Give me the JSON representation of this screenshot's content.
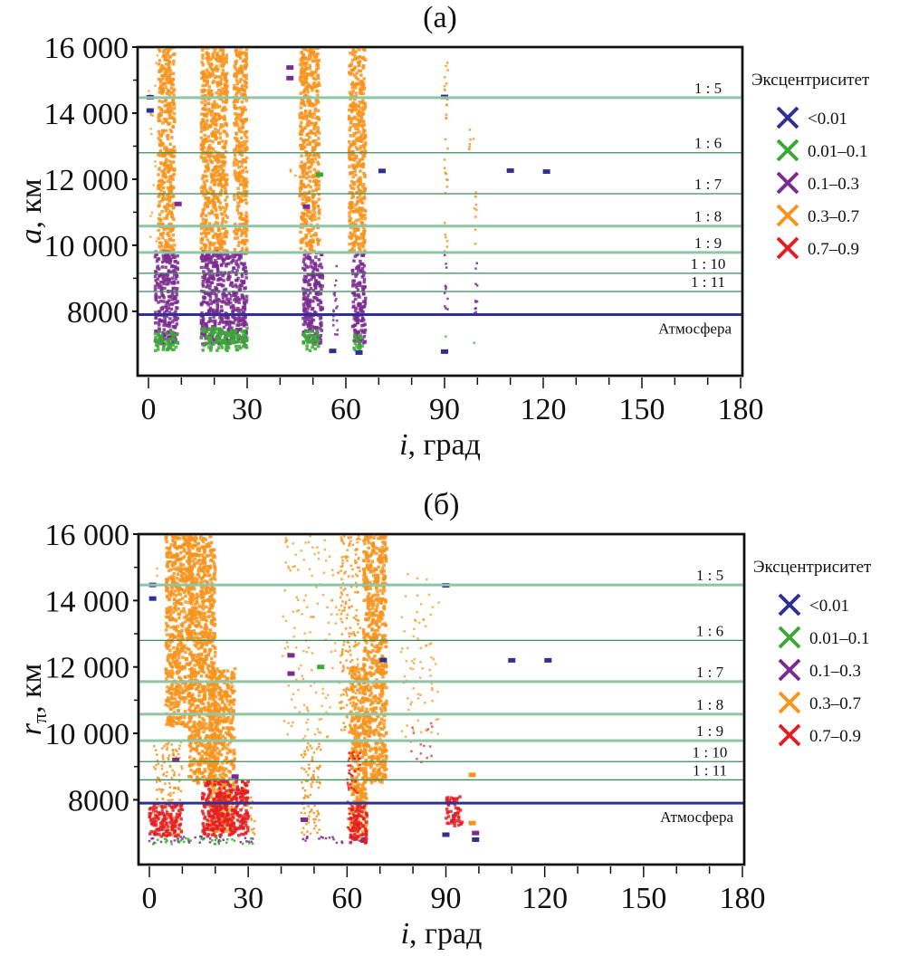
{
  "colors": {
    "<0.01": "#2e3192",
    "0.01–0.1": "#3aaa35",
    "0.1–0.3": "#7b2c8f",
    "0.3–0.7": "#f7941d",
    "0.7–0.9": "#e31e24"
  },
  "chart_data": [
    {
      "type": "scatter",
      "title": "(а)",
      "xlabel_var": "i",
      "xlabel_unit": ", град",
      "ylabel_var": "a",
      "ylabel_unit": ", км",
      "xlim": [
        0,
        180
      ],
      "ylim": [
        6050,
        16000
      ],
      "xticks": [
        0,
        30,
        60,
        90,
        120,
        150,
        180
      ],
      "xtick_labels": [
        "0",
        "30",
        "60",
        "90",
        "120",
        "150",
        "180"
      ],
      "yticks": [
        8000,
        10000,
        12000,
        14000,
        16000
      ],
      "ytick_labels": [
        "8000",
        "10 000",
        "12 000",
        "14 000",
        "16 000"
      ],
      "legend": {
        "title": "Эксцентриситет",
        "placement": "right",
        "entries": [
          "<0.01",
          "0.01–0.1",
          "0.1–0.3",
          "0.3–0.7",
          "0.7–0.9"
        ]
      },
      "hlines": [
        {
          "label": "1 : 5",
          "y": 14470,
          "style": "light"
        },
        {
          "label": "1 : 6",
          "y": 12800,
          "style": "dark"
        },
        {
          "label": "1 : 7",
          "y": 11560,
          "style": "dark"
        },
        {
          "label": "1 : 8",
          "y": 10580,
          "style": "light"
        },
        {
          "label": "1 : 9",
          "y": 9780,
          "style": "light"
        },
        {
          "label": "1 : 10",
          "y": 9150,
          "style": "dark"
        },
        {
          "label": "1 : 11",
          "y": 8600,
          "style": "dark"
        },
        {
          "label": "Атмосфера",
          "y": 7900,
          "style": "atm"
        }
      ],
      "clusters": [
        {
          "e": "0.3–0.7",
          "i": [
            3,
            8
          ],
          "y": [
            9800,
            16000
          ],
          "density": "dense"
        },
        {
          "e": "0.3–0.7",
          "i": [
            0,
            3.5
          ],
          "y": [
            10000,
            16000
          ],
          "density": "sparse"
        },
        {
          "e": "0.3–0.7",
          "i": [
            16,
            24
          ],
          "y": [
            9800,
            16000
          ],
          "density": "dense"
        },
        {
          "e": "0.3–0.7",
          "i": [
            26,
            30
          ],
          "y": [
            9800,
            16000
          ],
          "density": "dense"
        },
        {
          "e": "0.3–0.7",
          "i": [
            46,
            52
          ],
          "y": [
            9800,
            16000
          ],
          "density": "dense"
        },
        {
          "e": "0.3–0.7",
          "i": [
            61,
            66
          ],
          "y": [
            9800,
            16000
          ],
          "density": "dense"
        },
        {
          "e": "0.3–0.7",
          "i": [
            90,
            91
          ],
          "y": [
            9800,
            15900
          ],
          "density": "medium"
        },
        {
          "e": "0.3–0.7",
          "i": [
            99,
            100
          ],
          "y": [
            9800,
            11600
          ],
          "density": "medium"
        },
        {
          "e": "0.3–0.7",
          "i": [
            97.5,
            99
          ],
          "y": [
            12700,
            13500
          ],
          "density": "medium"
        },
        {
          "e": "0.3–0.7",
          "i": [
            43,
            45
          ],
          "y": [
            12000,
            12300
          ],
          "density": "medium"
        },
        {
          "e": "0.3–0.7",
          "i": [
            29,
            30
          ],
          "y": [
            15200,
            15800
          ],
          "density": "medium"
        },
        {
          "e": "0.1–0.3",
          "i": [
            2,
            9
          ],
          "y": [
            7000,
            9800
          ],
          "density": "dense"
        },
        {
          "e": "0.1–0.3",
          "i": [
            16,
            30
          ],
          "y": [
            7000,
            9800
          ],
          "density": "dense"
        },
        {
          "e": "0.1–0.3",
          "i": [
            47,
            53
          ],
          "y": [
            7000,
            9800
          ],
          "density": "dense"
        },
        {
          "e": "0.1–0.3",
          "i": [
            56,
            57.5
          ],
          "y": [
            7200,
            9600
          ],
          "density": "medium"
        },
        {
          "e": "0.1–0.3",
          "i": [
            62,
            66
          ],
          "y": [
            7000,
            9800
          ],
          "density": "dense"
        },
        {
          "e": "0.1–0.3",
          "i": [
            90,
            91
          ],
          "y": [
            7600,
            9800
          ],
          "density": "medium"
        },
        {
          "e": "0.1–0.3",
          "i": [
            99,
            100
          ],
          "y": [
            7600,
            9800
          ],
          "density": "medium"
        },
        {
          "e": "0.01–0.1",
          "i": [
            2,
            9
          ],
          "y": [
            6800,
            7400
          ],
          "density": "dense"
        },
        {
          "e": "0.01–0.1",
          "i": [
            16,
            30
          ],
          "y": [
            6800,
            7500
          ],
          "density": "dense"
        },
        {
          "e": "0.01–0.1",
          "i": [
            47,
            52
          ],
          "y": [
            6800,
            7400
          ],
          "density": "dense"
        },
        {
          "e": "0.01–0.1",
          "i": [
            62,
            65
          ],
          "y": [
            6800,
            7300
          ],
          "density": "dense"
        },
        {
          "e": "0.01–0.1",
          "i": [
            90,
            91
          ],
          "y": [
            7000,
            7500
          ],
          "density": "sparse"
        },
        {
          "e": "0.01–0.1",
          "i": [
            99,
            100
          ],
          "y": [
            7000,
            7600
          ],
          "density": "sparse"
        }
      ],
      "points": [
        {
          "e": "<0.01",
          "i": 0.5,
          "y": 14480
        },
        {
          "e": "<0.01",
          "i": 0.5,
          "y": 14080
        },
        {
          "e": "<0.01",
          "i": 71,
          "y": 12250
        },
        {
          "e": "<0.01",
          "i": 110,
          "y": 12260
        },
        {
          "e": "<0.01",
          "i": 121,
          "y": 12230
        },
        {
          "e": "<0.01",
          "i": 90,
          "y": 14490
        },
        {
          "e": "<0.01",
          "i": 64,
          "y": 6750
        },
        {
          "e": "<0.01",
          "i": 90,
          "y": 6780
        },
        {
          "e": "<0.01",
          "i": 56,
          "y": 6800
        },
        {
          "e": "0.1–0.3",
          "i": 43,
          "y": 15380
        },
        {
          "e": "0.1–0.3",
          "i": 43,
          "y": 15060
        },
        {
          "e": "0.1–0.3",
          "i": 9,
          "y": 11250
        },
        {
          "e": "0.1–0.3",
          "i": 48,
          "y": 11170
        },
        {
          "e": "0.01–0.1",
          "i": 52,
          "y": 12140
        }
      ]
    },
    {
      "type": "scatter",
      "title": "(б)",
      "xlabel_var": "i",
      "xlabel_unit": ", град",
      "ylabel_var": "r",
      "ylabel_sub": "π",
      "ylabel_unit": ", км",
      "xlim": [
        0,
        180
      ],
      "ylim": [
        6050,
        16000
      ],
      "xticks": [
        0,
        30,
        60,
        90,
        120,
        150,
        180
      ],
      "xtick_labels": [
        "0",
        "30",
        "60",
        "90",
        "120",
        "150",
        "180"
      ],
      "yticks": [
        8000,
        10000,
        12000,
        14000,
        16000
      ],
      "ytick_labels": [
        "8000",
        "10 000",
        "12 000",
        "14 000",
        "16 000"
      ],
      "legend": {
        "title": "Эксцентриситет",
        "placement": "right",
        "entries": [
          "<0.01",
          "0.01–0.1",
          "0.1–0.3",
          "0.3–0.7",
          "0.7–0.9"
        ]
      },
      "hlines": [
        {
          "label": "1 : 5",
          "y": 14470,
          "style": "light"
        },
        {
          "label": "1 : 6",
          "y": 12800,
          "style": "dark"
        },
        {
          "label": "1 : 7",
          "y": 11560,
          "style": "light"
        },
        {
          "label": "1 : 8",
          "y": 10580,
          "style": "light"
        },
        {
          "label": "1 : 9",
          "y": 9780,
          "style": "light"
        },
        {
          "label": "1 : 10",
          "y": 9150,
          "style": "dark"
        },
        {
          "label": "1 : 11",
          "y": 8600,
          "style": "dark"
        },
        {
          "label": "Атмосфера",
          "y": 7900,
          "style": "atm"
        }
      ],
      "clusters": [
        {
          "e": "0.3–0.7",
          "i": [
            5,
            13
          ],
          "y": [
            10200,
            16000
          ],
          "density": "dense"
        },
        {
          "e": "0.3–0.7",
          "i": [
            12,
            20
          ],
          "y": [
            8500,
            16000
          ],
          "density": "dense"
        },
        {
          "e": "0.3–0.7",
          "i": [
            18,
            26
          ],
          "y": [
            7000,
            12000
          ],
          "density": "dense"
        },
        {
          "e": "0.3–0.7",
          "i": [
            1,
            10
          ],
          "y": [
            6900,
            9800
          ],
          "density": "medium"
        },
        {
          "e": "0.3–0.7",
          "i": [
            0,
            3
          ],
          "y": [
            14500,
            15000
          ],
          "density": "sparse"
        },
        {
          "e": "0.3–0.7",
          "i": [
            61,
            66
          ],
          "y": [
            6900,
            12000
          ],
          "density": "dense"
        },
        {
          "e": "0.3–0.7",
          "i": [
            65,
            72
          ],
          "y": [
            8500,
            16000
          ],
          "density": "dense"
        },
        {
          "e": "0.3–0.7",
          "i": [
            58,
            64
          ],
          "y": [
            10000,
            16000
          ],
          "density": "medium"
        },
        {
          "e": "0.3–0.7",
          "i": [
            40,
            58
          ],
          "y": [
            9800,
            16000
          ],
          "density": "sparse"
        },
        {
          "e": "0.3–0.7",
          "i": [
            76,
            88
          ],
          "y": [
            9800,
            15000
          ],
          "density": "sparse"
        },
        {
          "e": "0.3–0.7",
          "i": [
            46,
            52
          ],
          "y": [
            6900,
            9700
          ],
          "density": "medium"
        },
        {
          "e": "0.3–0.7",
          "i": [
            28,
            32
          ],
          "y": [
            6900,
            8500
          ],
          "density": "medium"
        },
        {
          "e": "0.7–0.9",
          "i": [
            0,
            10
          ],
          "y": [
            6900,
            7900
          ],
          "density": "dense"
        },
        {
          "e": "0.7–0.9",
          "i": [
            16,
            30
          ],
          "y": [
            6900,
            8600
          ],
          "density": "dense"
        },
        {
          "e": "0.7–0.9",
          "i": [
            60,
            64
          ],
          "y": [
            6800,
            9500
          ],
          "density": "medium"
        },
        {
          "e": "0.7–0.9",
          "i": [
            61,
            66
          ],
          "y": [
            6700,
            7900
          ],
          "density": "dense"
        },
        {
          "e": "0.7–0.9",
          "i": [
            90,
            95
          ],
          "y": [
            7200,
            8100
          ],
          "density": "dense"
        },
        {
          "e": "0.7–0.9",
          "i": [
            78,
            86
          ],
          "y": [
            9000,
            10600
          ],
          "density": "sparse"
        },
        {
          "e": "0.1–0.3",
          "i": [
            0,
            32
          ],
          "y": [
            6700,
            6900
          ],
          "density": "medium"
        },
        {
          "e": "0.01–0.1",
          "i": [
            0,
            32
          ],
          "y": [
            6650,
            6850
          ],
          "density": "medium"
        },
        {
          "e": "0.1–0.3",
          "i": [
            46,
            66
          ],
          "y": [
            6700,
            6900
          ],
          "density": "medium"
        }
      ],
      "points": [
        {
          "e": "<0.01",
          "i": 1,
          "y": 14470
        },
        {
          "e": "<0.01",
          "i": 1,
          "y": 14060
        },
        {
          "e": "<0.01",
          "i": 71,
          "y": 12210
        },
        {
          "e": "<0.01",
          "i": 90,
          "y": 14460
        },
        {
          "e": "<0.01",
          "i": 110,
          "y": 12200
        },
        {
          "e": "<0.01",
          "i": 121,
          "y": 12200
        },
        {
          "e": "<0.01",
          "i": 90,
          "y": 6950
        },
        {
          "e": "<0.01",
          "i": 99,
          "y": 6800
        },
        {
          "e": "0.1–0.3",
          "i": 43,
          "y": 12350
        },
        {
          "e": "0.1–0.3",
          "i": 43,
          "y": 11800
        },
        {
          "e": "0.1–0.3",
          "i": 8,
          "y": 9200
        },
        {
          "e": "0.1–0.3",
          "i": 47,
          "y": 7400
        },
        {
          "e": "0.1–0.3",
          "i": 26,
          "y": 8700
        },
        {
          "e": "0.1–0.3",
          "i": 99,
          "y": 7000
        },
        {
          "e": "0.01–0.1",
          "i": 52,
          "y": 12000
        },
        {
          "e": "0.3–0.7",
          "i": 98,
          "y": 8750
        },
        {
          "e": "0.3–0.7",
          "i": 98,
          "y": 7300
        }
      ]
    }
  ]
}
